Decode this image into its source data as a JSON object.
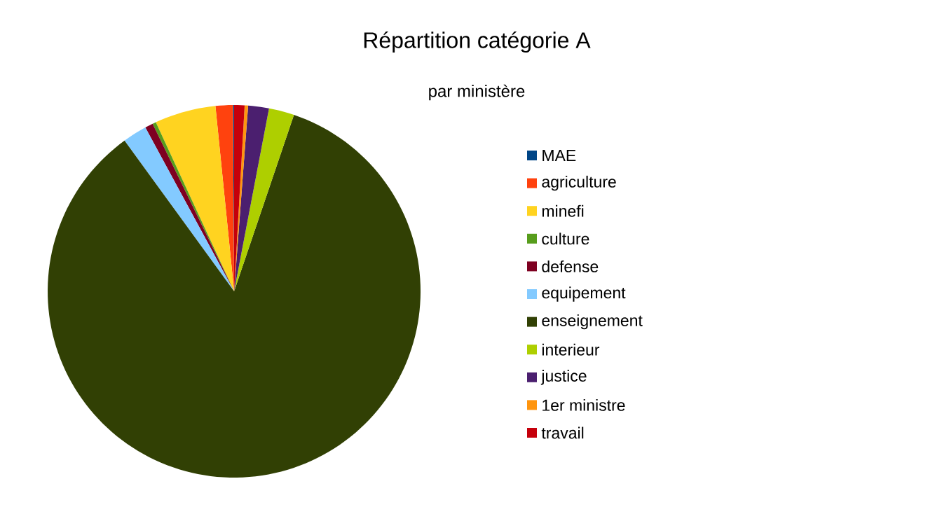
{
  "chart_data": {
    "type": "pie",
    "title": "Répartition catégorie A",
    "subtitle": "par ministère",
    "categories": [
      "MAE",
      "agriculture",
      "minefi",
      "culture",
      "defense",
      "equipement",
      "enseignement",
      "interieur",
      "justice",
      "1er  ministre",
      "travail"
    ],
    "values": [
      0.1,
      1.5,
      5.3,
      0.3,
      0.7,
      2.1,
      84.8,
      2.2,
      1.8,
      0.3,
      0.9
    ],
    "colors": [
      "#004586",
      "#ff420e",
      "#ffd320",
      "#579d1c",
      "#7e0021",
      "#83caff",
      "#314004",
      "#aecf00",
      "#4b1f6f",
      "#ff950e",
      "#c5000b"
    ],
    "legend": "right"
  }
}
